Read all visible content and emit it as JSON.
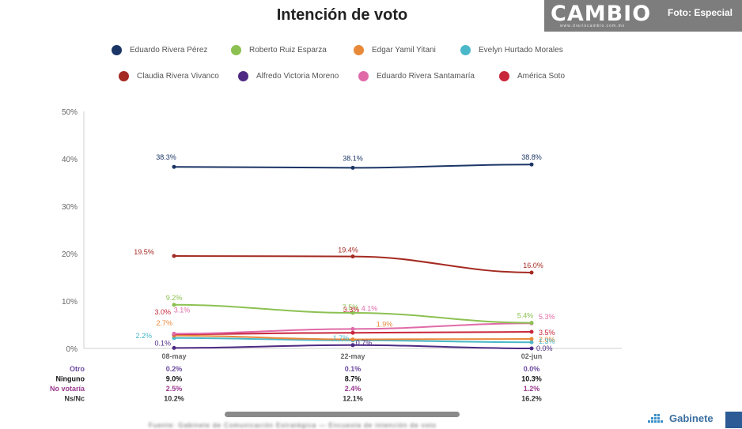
{
  "brand": {
    "logo": "CAMBIO",
    "url": "www.diariocambio.com.mx",
    "credit": "Foto: Especial",
    "footer_logo": "Gabinete"
  },
  "footer_note": "Fuente: Gabinete de Comunicación Estratégica — Encuesta de intención de voto",
  "chart_data": {
    "type": "line",
    "title": "Intención de voto",
    "xlabel": "",
    "ylabel": "",
    "categories": [
      "08-may",
      "22-may",
      "02-jun"
    ],
    "ylim": [
      0,
      50
    ],
    "yticks": [
      0,
      10,
      20,
      30,
      40,
      50
    ],
    "ytick_labels": [
      "0%",
      "10%",
      "20%",
      "30%",
      "40%",
      "50%"
    ],
    "grid": false,
    "legend_position": "top",
    "series": [
      {
        "name": "Eduardo Rivera Pérez",
        "color": "#1b3566",
        "values": [
          38.3,
          38.1,
          38.8
        ],
        "labels": [
          "38.3%",
          "38.1%",
          "38.8%"
        ]
      },
      {
        "name": "Roberto Ruiz Esparza",
        "color": "#8cc152",
        "values": [
          9.2,
          7.5,
          5.4
        ],
        "labels": [
          "9.2%",
          "7.5%",
          "5.4%"
        ]
      },
      {
        "name": "Edgar Yamil Yitani",
        "color": "#e8893a",
        "values": [
          2.7,
          1.9,
          2.0
        ],
        "labels": [
          "2.7%",
          "1.9%",
          "2.0%"
        ]
      },
      {
        "name": "Evelyn Hurtado Morales",
        "color": "#4ab8c8",
        "values": [
          2.2,
          1.7,
          1.3
        ],
        "labels": [
          "2.2%",
          "1.7%",
          "1.3%"
        ]
      },
      {
        "name": "Claudia Rivera Vivanco",
        "color": "#a42a22",
        "values": [
          19.5,
          19.4,
          16.0
        ],
        "labels": [
          "19.5%",
          "19.4%",
          "16.0%"
        ]
      },
      {
        "name": "Alfredo Victoria Moreno",
        "color": "#4e2a84",
        "values": [
          0.1,
          0.7,
          0.0
        ],
        "labels": [
          "0.1%",
          "0.7%",
          "0.0%"
        ]
      },
      {
        "name": "Eduardo Rivera Santamaría",
        "color": "#e06aa8",
        "values": [
          3.1,
          4.1,
          5.3
        ],
        "labels": [
          "3.1%",
          "4.1%",
          "5.3%"
        ]
      },
      {
        "name": "América Soto",
        "color": "#c8263a",
        "values": [
          3.0,
          3.3,
          3.5
        ],
        "labels": [
          "3.0%",
          "3.3%",
          "3.5%"
        ]
      }
    ],
    "table": [
      {
        "label": "Otro",
        "color": "#6b4a9e",
        "values": [
          "0.2%",
          "0.1%",
          "0.0%"
        ]
      },
      {
        "label": "Ninguno",
        "color": "#111111",
        "values": [
          "9.0%",
          "8.7%",
          "10.3%"
        ]
      },
      {
        "label": "No votaría",
        "color": "#9b3a8f",
        "values": [
          "2.5%",
          "2.4%",
          "1.2%"
        ]
      },
      {
        "label": "Ns/Nc",
        "color": "#333333",
        "values": [
          "10.2%",
          "12.1%",
          "16.2%"
        ]
      }
    ]
  }
}
